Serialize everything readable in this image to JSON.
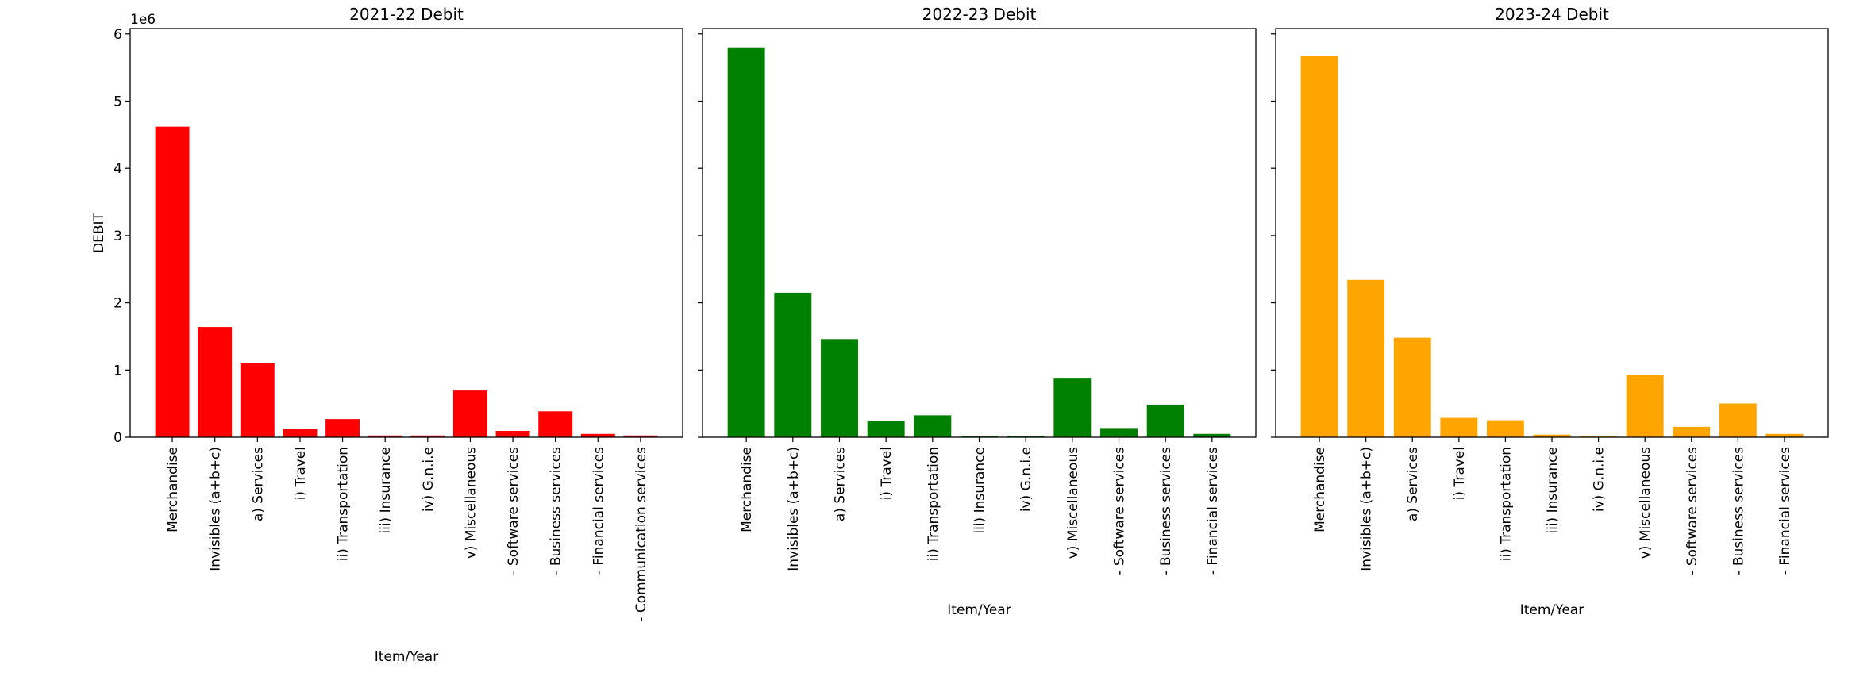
{
  "chart_data": [
    {
      "type": "bar",
      "title": "2021-22 Debit",
      "xlabel": "Item/Year",
      "ylabel": "DEBIT",
      "y_offset_label": "1e6",
      "ylim": [
        0,
        6080000
      ],
      "yticks": [
        0,
        1,
        2,
        3,
        4,
        5,
        6
      ],
      "show_ytick_labels": true,
      "color": "#ff0000",
      "categories": [
        "Merchandise",
        "Invisibles (a+b+c)",
        "a) Services",
        "i) Travel",
        "ii) Transportation",
        "iii) Insurance",
        "iv) G.n.i.e",
        "v) Miscellaneous",
        "- Software services",
        "- Business services",
        "- Financial services",
        "- Communication services"
      ],
      "values": [
        4620000,
        1640000,
        1100000,
        120000,
        270000,
        26000,
        26000,
        695000,
        94000,
        386000,
        50000,
        26000
      ]
    },
    {
      "type": "bar",
      "title": "2022-23 Debit",
      "xlabel": "Item/Year",
      "ylabel": "",
      "ylim": [
        0,
        6080000
      ],
      "yticks": [
        0,
        1,
        2,
        3,
        4,
        5,
        6
      ],
      "show_ytick_labels": false,
      "color": "#008000",
      "categories": [
        "Merchandise",
        "Invisibles (a+b+c)",
        "a) Services",
        "i) Travel",
        "ii) Transportation",
        "iii) Insurance",
        "iv) G.n.i.e",
        "v) Miscellaneous",
        "- Software services",
        "- Business services",
        "- Financial services"
      ],
      "values": [
        5800000,
        2150000,
        1460000,
        240000,
        326000,
        20000,
        20000,
        884000,
        137000,
        485000,
        50000
      ]
    },
    {
      "type": "bar",
      "title": "2023-24 Debit",
      "xlabel": "Item/Year",
      "ylabel": "",
      "ylim": [
        0,
        6080000
      ],
      "yticks": [
        0,
        1,
        2,
        3,
        4,
        5,
        6
      ],
      "show_ytick_labels": false,
      "color": "#ffa500",
      "categories": [
        "Merchandise",
        "Invisibles (a+b+c)",
        "a) Services",
        "i) Travel",
        "ii) Transportation",
        "iii) Insurance",
        "iv) G.n.i.e",
        "v) Miscellaneous",
        "- Software services",
        "- Business services",
        "- Financial services"
      ],
      "values": [
        5670000,
        2340000,
        1480000,
        288000,
        253000,
        39000,
        20000,
        927000,
        155000,
        502000,
        50000
      ]
    }
  ]
}
